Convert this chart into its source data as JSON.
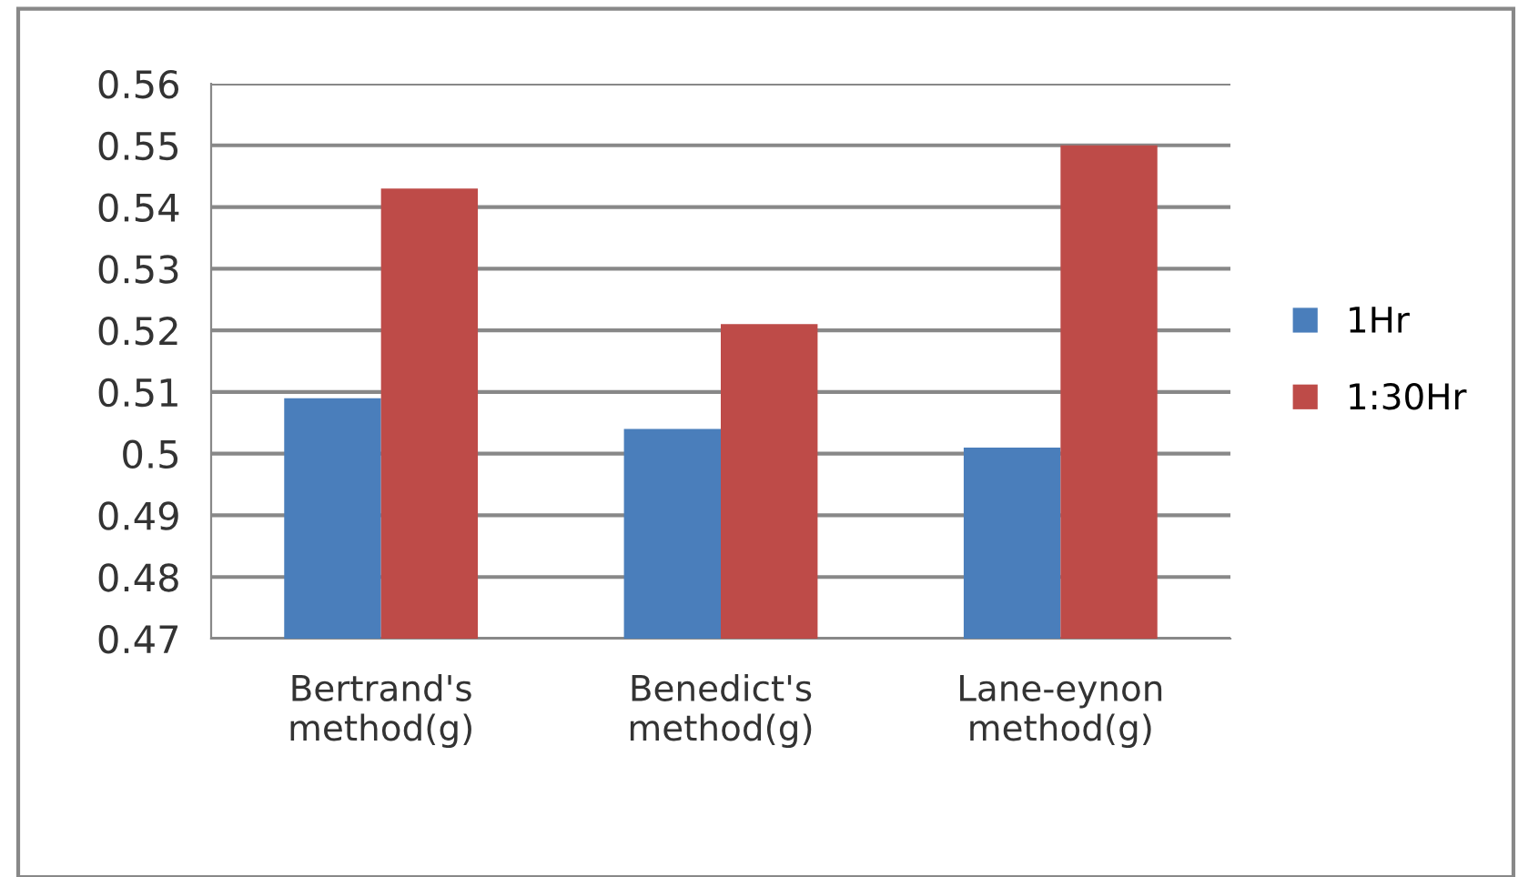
{
  "chart_data": {
    "type": "bar",
    "categories": [
      "Bertrand's\nmethod(g)",
      "Benedict's\nmethod(g)",
      "Lane-eynon\nmethod(g)"
    ],
    "series": [
      {
        "name": "1Hr",
        "color": "#4a7ebb",
        "values": [
          0.509,
          0.504,
          0.501
        ]
      },
      {
        "name": "1:30Hr",
        "color": "#be4b48",
        "values": [
          0.543,
          0.521,
          0.55
        ]
      }
    ],
    "ylim": [
      0.47,
      0.56
    ],
    "yticks": [
      0.47,
      0.48,
      0.49,
      0.5,
      0.51,
      0.52,
      0.53,
      0.54,
      0.55,
      0.56
    ],
    "grid": "y",
    "legend": "right"
  }
}
